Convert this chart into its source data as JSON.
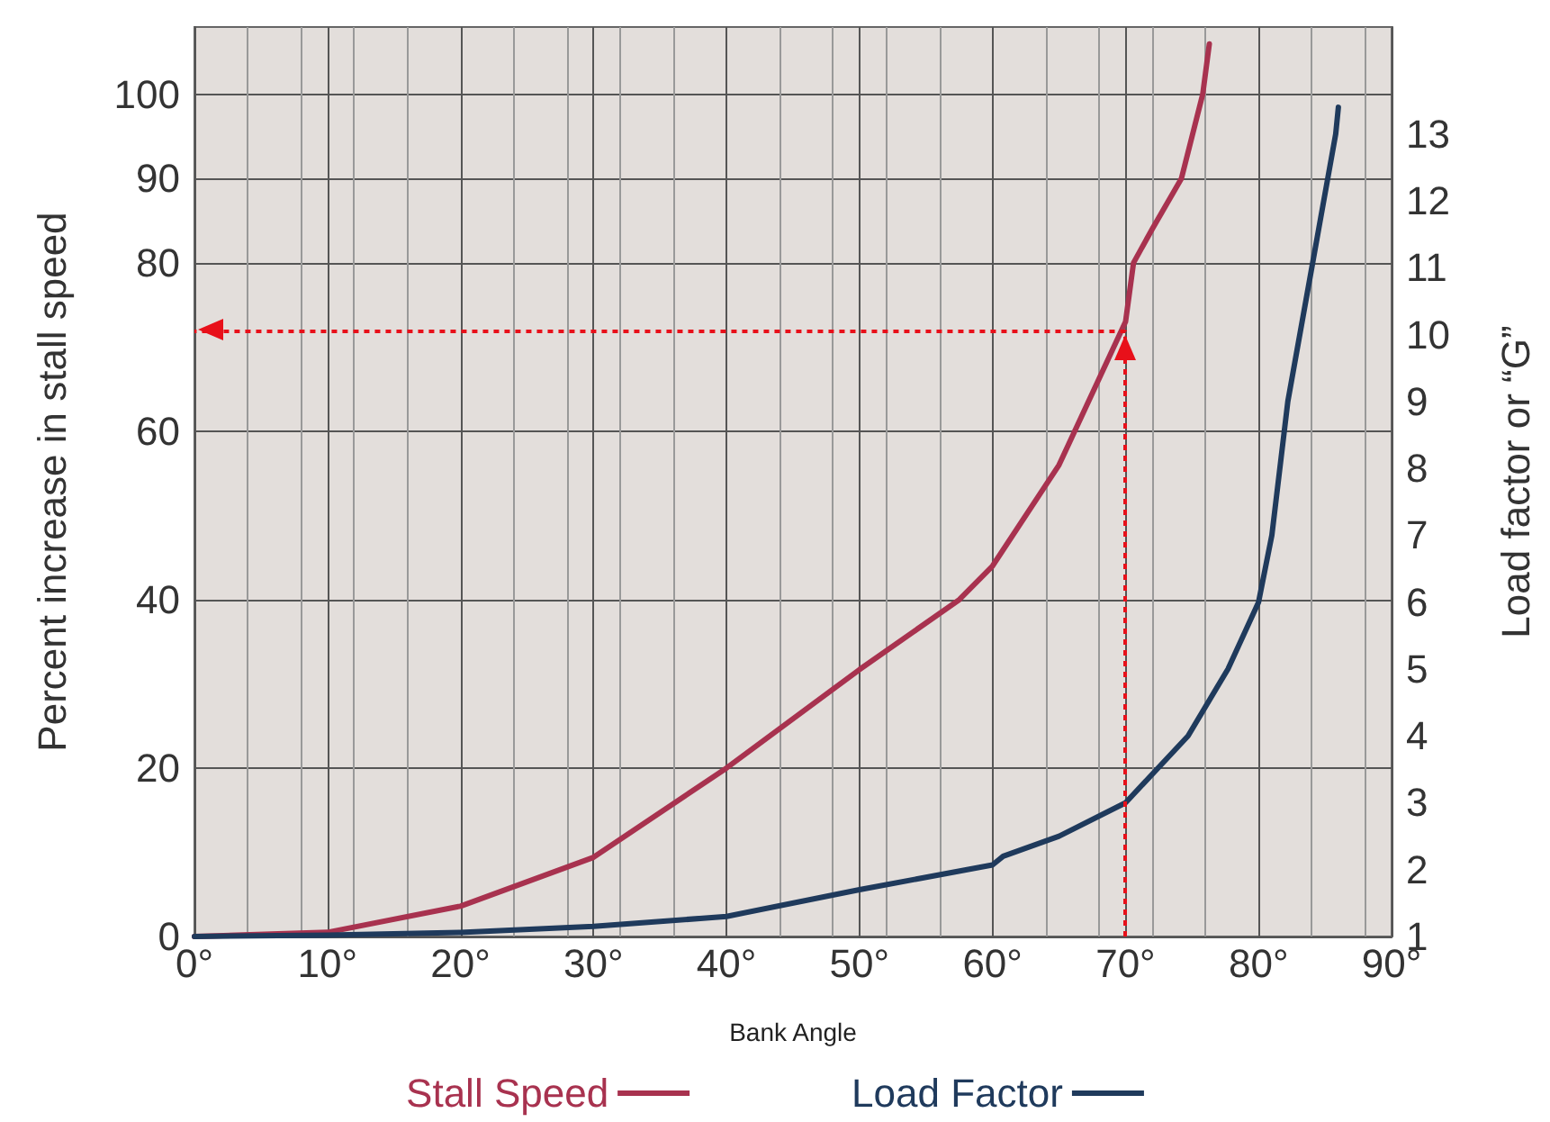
{
  "chart_data": {
    "type": "line",
    "xlabel": "Bank Angle",
    "ylabel": "Percent increase in stall speed",
    "y2label": "Load factor or “G”",
    "xlim": [
      0,
      90
    ],
    "xticks": [
      {
        "value": 0,
        "label": "0°"
      },
      {
        "value": 10,
        "label": "10°"
      },
      {
        "value": 20,
        "label": "20°"
      },
      {
        "value": 30,
        "label": "30°"
      },
      {
        "value": 40,
        "label": "40°"
      },
      {
        "value": 50,
        "label": "50°"
      },
      {
        "value": 60,
        "label": "60°"
      },
      {
        "value": 70,
        "label": "70°"
      },
      {
        "value": 80,
        "label": "80°"
      },
      {
        "value": 90,
        "label": "90°"
      }
    ],
    "ylim": [
      0,
      108
    ],
    "yticks": [
      0,
      20,
      40,
      60,
      80,
      90,
      100
    ],
    "y2lim": [
      1,
      14.6
    ],
    "y2ticks": [
      1,
      2,
      3,
      4,
      5,
      6,
      7,
      8,
      9,
      10,
      11,
      12,
      13
    ],
    "series": [
      {
        "name": "Stall Speed",
        "color": "#a8324f",
        "x": [
          0,
          10,
          20,
          30,
          40,
          50,
          57.5,
          60,
          65,
          70,
          70.6,
          72,
          74.2,
          75.8,
          76.3
        ],
        "values": [
          0,
          0.5,
          3.6,
          9.4,
          20,
          31.7,
          40,
          44,
          56,
          73,
          80,
          84,
          90,
          100,
          106
        ]
      },
      {
        "name": "Load Factor",
        "color": "#1f3a5c",
        "axis": "y2",
        "x": [
          0,
          10,
          20,
          30,
          40,
          50,
          60,
          60.8,
          65,
          70,
          74.7,
          77.7,
          80,
          81,
          82.2,
          84,
          85.8,
          86
        ],
        "values": [
          1,
          1.02,
          1.06,
          1.15,
          1.3,
          1.7,
          2.07,
          2.2,
          2.5,
          3,
          4,
          5,
          6,
          7,
          9,
          11,
          13,
          13.4
        ]
      }
    ],
    "ref_lines": [
      {
        "axis": "x",
        "value": 70,
        "color": "#e8101a",
        "line_style": "dotted"
      },
      {
        "axis": "y",
        "value": 72,
        "color": "#e8101a",
        "line_style": "dotted"
      }
    ],
    "grid": true,
    "legend": "bottom",
    "marker": "none",
    "line_style": "solid"
  }
}
